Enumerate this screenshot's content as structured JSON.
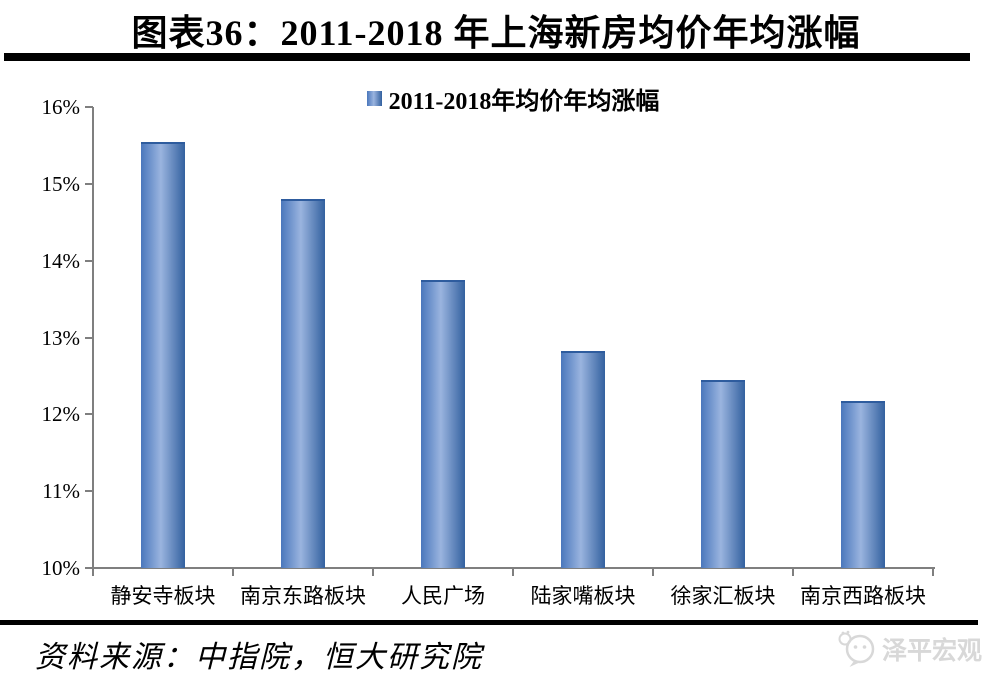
{
  "header": {
    "title": "图表36：2011-2018 年上海新房均价年均涨幅"
  },
  "chart_data": {
    "type": "bar",
    "title": "图表36：2011-2018 年上海新房均价年均涨幅",
    "legend": "2011-2018年均价年均涨幅",
    "categories": [
      "静安寺板块",
      "南京东路板块",
      "人民广场",
      "陆家嘴板块",
      "徐家汇板块",
      "南京西路板块"
    ],
    "values": [
      15.55,
      14.8,
      13.75,
      12.83,
      12.45,
      12.17
    ],
    "unit": "%",
    "ylim": [
      10,
      16
    ],
    "ytick_step": 1,
    "ytick_labels": [
      "10%",
      "11%",
      "12%",
      "13%",
      "14%",
      "15%",
      "16%"
    ],
    "xlabel": "",
    "ylabel": "",
    "grid": false,
    "legend_position": "top-center",
    "colors": {
      "bar_edge_left": "#4A77BC",
      "bar_center": "#9AB4DF",
      "bar_edge_right": "#33619F",
      "bar_cap": "#2E5C9E",
      "axis": "#7F7F7F",
      "title_rule": "#000000",
      "logo_gray": "#D8D8D8"
    }
  },
  "footer": {
    "source": "资料来源：中指院，恒大研究院",
    "logo_text": "泽平宏观"
  }
}
